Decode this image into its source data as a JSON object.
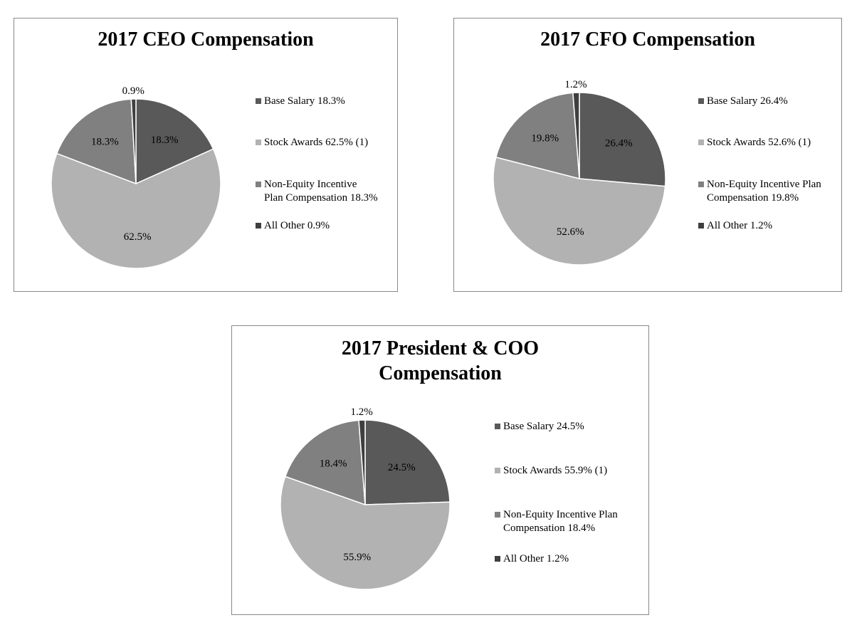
{
  "colors": {
    "base_salary": "#595959",
    "stock_awards": "#b2b2b2",
    "non_equity": "#808080",
    "all_other": "#3f3f3f",
    "slice_border": "#ffffff"
  },
  "chart_data": [
    {
      "type": "pie",
      "title": "2017 CEO Compensation",
      "slices": [
        {
          "name": "Base Salary",
          "value": 18.3,
          "label": "18.3%",
          "legend": "Base Salary 18.3%",
          "color": "#595959"
        },
        {
          "name": "Stock Awards",
          "value": 62.5,
          "label": "62.5%",
          "legend": "Stock Awards 62.5% (1)",
          "color": "#b2b2b2"
        },
        {
          "name": "Non-Equity Incentive Plan Compensation",
          "value": 18.3,
          "label": "18.3%",
          "legend": [
            "Non-Equity Incentive",
            "Plan Compensation 18.3%"
          ],
          "color": "#808080"
        },
        {
          "name": "All Other",
          "value": 0.9,
          "label": "0.9%",
          "legend": "All Other 0.9%",
          "color": "#3f3f3f"
        }
      ],
      "legend_position": "right"
    },
    {
      "type": "pie",
      "title": "2017 CFO Compensation",
      "slices": [
        {
          "name": "Base Salary",
          "value": 26.4,
          "label": "26.4%",
          "legend": "Base Salary 26.4%",
          "color": "#595959"
        },
        {
          "name": "Stock Awards",
          "value": 52.6,
          "label": "52.6%",
          "legend": "Stock Awards 52.6% (1)",
          "color": "#b2b2b2"
        },
        {
          "name": "Non-Equity Incentive Plan Compensation",
          "value": 19.8,
          "label": "19.8%",
          "legend": [
            "Non-Equity Incentive Plan",
            "Compensation 19.8%"
          ],
          "color": "#808080"
        },
        {
          "name": "All Other",
          "value": 1.2,
          "label": "1.2%",
          "legend": "All Other 1.2%",
          "color": "#3f3f3f"
        }
      ],
      "legend_position": "right"
    },
    {
      "type": "pie",
      "title": "2017 President & COO Compensation",
      "slices": [
        {
          "name": "Base Salary",
          "value": 24.5,
          "label": "24.5%",
          "legend": "Base Salary 24.5%",
          "color": "#595959"
        },
        {
          "name": "Stock Awards",
          "value": 55.9,
          "label": "55.9%",
          "legend": "Stock Awards 55.9% (1)",
          "color": "#b2b2b2"
        },
        {
          "name": "Non-Equity Incentive Plan Compensation",
          "value": 18.4,
          "label": "18.4%",
          "legend": [
            "Non-Equity Incentive Plan",
            "Compensation 18.4%"
          ],
          "color": "#808080"
        },
        {
          "name": "All Other",
          "value": 1.2,
          "label": "1.2%",
          "legend": "All Other 1.2%",
          "color": "#3f3f3f"
        }
      ],
      "legend_position": "right"
    }
  ]
}
